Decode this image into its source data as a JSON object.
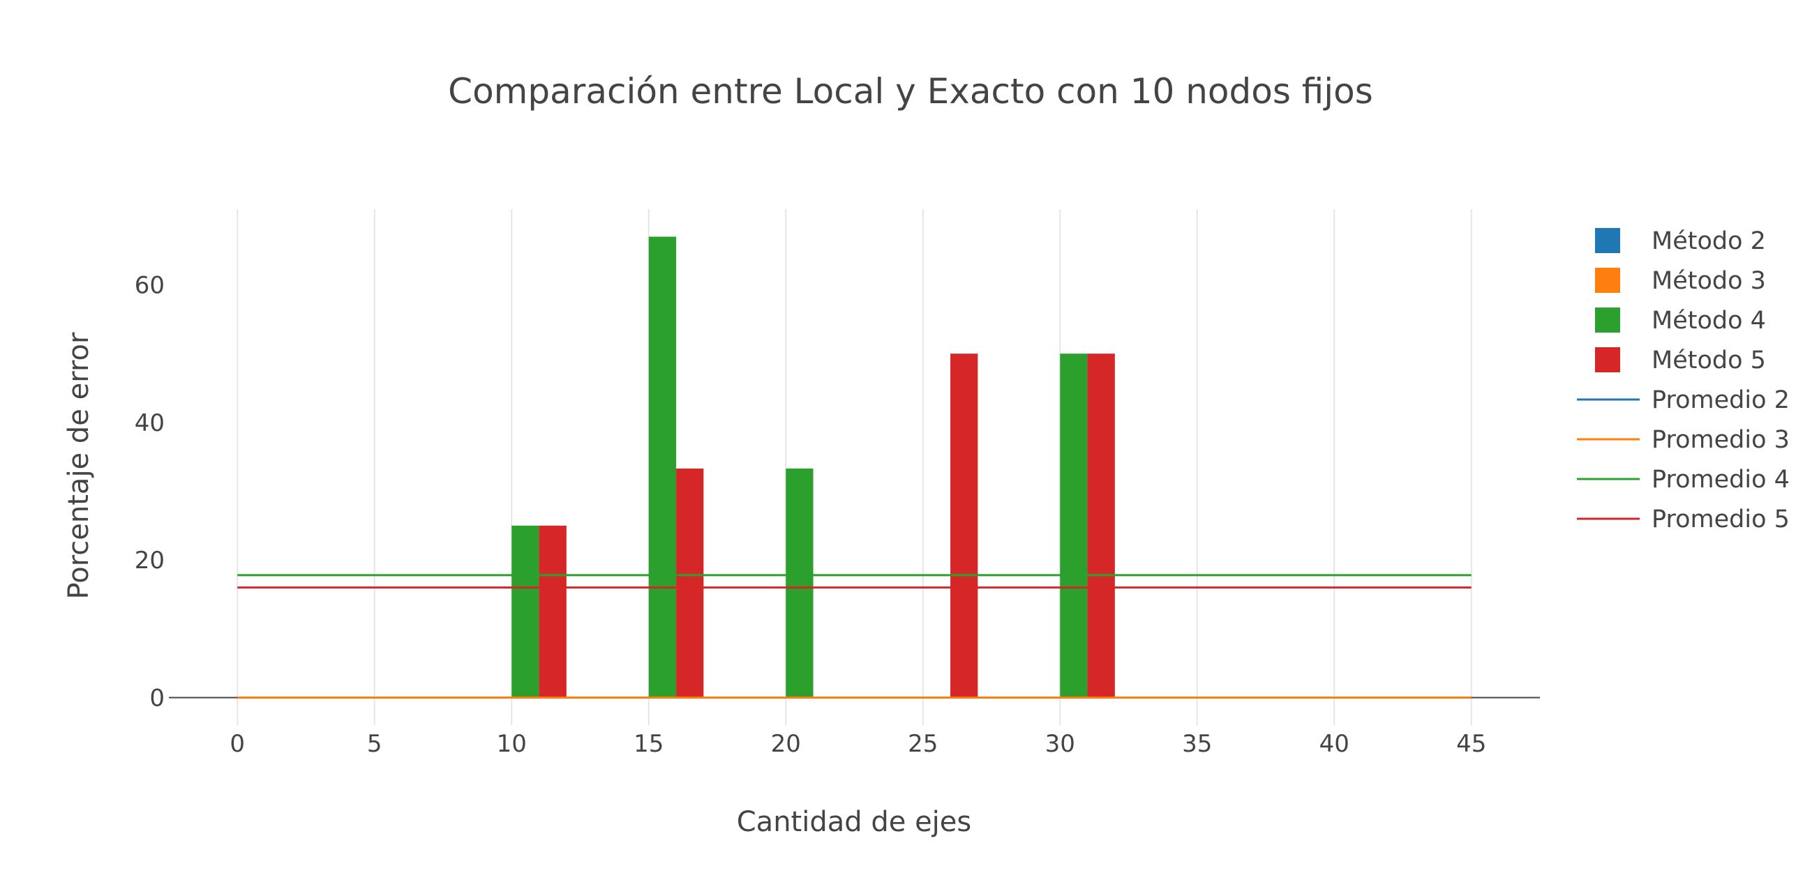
{
  "chart_data": {
    "type": "bar",
    "title": "Comparación entre Local y Exacto con 10 nodos fijos",
    "xlabel": "Cantidad de ejes",
    "ylabel": "Porcentaje de error",
    "xlim": [
      -2.5,
      47.5
    ],
    "ylim": [
      -4,
      71
    ],
    "xticks": [
      0,
      5,
      10,
      15,
      20,
      25,
      30,
      35,
      40,
      45
    ],
    "yticks": [
      0,
      20,
      40,
      60
    ],
    "grid": "vertical",
    "legend_position": "right",
    "bar_series": [
      {
        "name": "Método 2",
        "color": "#1f77b4",
        "offset": -1.5,
        "x": [
          0,
          5,
          10,
          15,
          20,
          25,
          30,
          35,
          40,
          45
        ],
        "values": [
          0,
          0,
          0,
          0,
          0,
          0,
          0,
          0,
          0,
          0
        ]
      },
      {
        "name": "Método 3",
        "color": "#ff7f0e",
        "offset": -0.5,
        "x": [
          0,
          5,
          10,
          15,
          20,
          25,
          30,
          35,
          40,
          45
        ],
        "values": [
          0,
          0,
          0,
          0,
          0,
          0,
          0,
          0,
          0,
          0
        ]
      },
      {
        "name": "Método 4",
        "color": "#2ca02c",
        "offset": 0.5,
        "x": [
          0,
          5,
          10,
          15,
          20,
          25,
          30,
          35,
          40,
          45
        ],
        "values": [
          0,
          0,
          25,
          67,
          33.3,
          0,
          50,
          0,
          0,
          0
        ]
      },
      {
        "name": "Método 5",
        "color": "#d62728",
        "offset": 1.5,
        "x": [
          0,
          5,
          10,
          15,
          20,
          25,
          30,
          35,
          40,
          45
        ],
        "values": [
          0,
          0,
          25,
          33.3,
          0,
          50,
          50,
          0,
          0,
          0
        ]
      }
    ],
    "line_series": [
      {
        "name": "Promedio 2",
        "color": "#1f77b4",
        "x": [
          0,
          45
        ],
        "values": [
          0,
          0
        ]
      },
      {
        "name": "Promedio 3",
        "color": "#ff7f0e",
        "x": [
          0,
          45
        ],
        "values": [
          0,
          0
        ]
      },
      {
        "name": "Promedio 4",
        "color": "#2ca02c",
        "x": [
          0,
          45
        ],
        "values": [
          17.8,
          17.8
        ]
      },
      {
        "name": "Promedio 5",
        "color": "#d62728",
        "x": [
          0,
          45
        ],
        "values": [
          16.0,
          16.0
        ]
      }
    ]
  }
}
